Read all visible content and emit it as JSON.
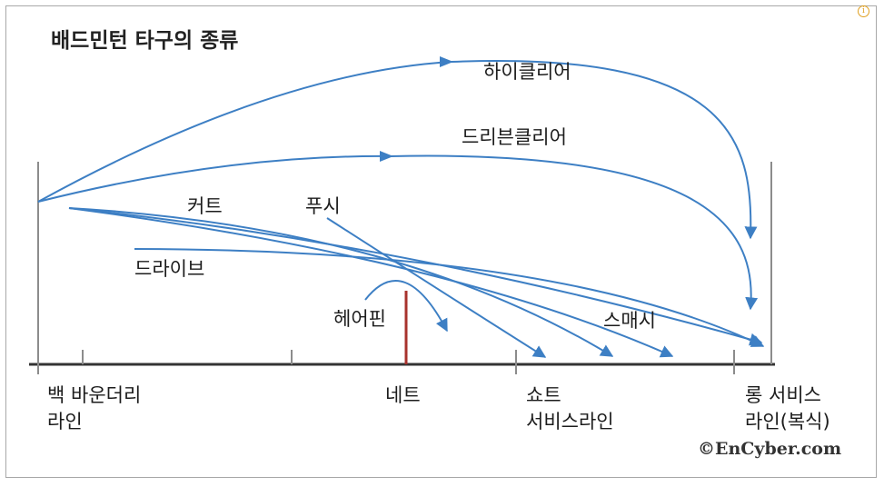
{
  "title": "배드민턴 타구의 종류",
  "shots": {
    "high_clear": "하이클리어",
    "drive_clear": "드리븐클리어",
    "cut": "커트",
    "push": "푸시",
    "drive": "드라이브",
    "hairpin": "헤어핀",
    "smash": "스매시"
  },
  "court": {
    "back_boundary_1": "백 바운더리",
    "back_boundary_2": "라인",
    "net": "네트",
    "short_service_1": "쇼트",
    "short_service_2": "서비스라인",
    "long_service_1": "롱 서비스",
    "long_service_2": "라인(복식)"
  },
  "copyright": "©EnCyber.com",
  "colors": {
    "trajectory": "#3d7fc4",
    "net": "#a8322d",
    "floor": "#333333",
    "post": "#8c8c8c"
  }
}
